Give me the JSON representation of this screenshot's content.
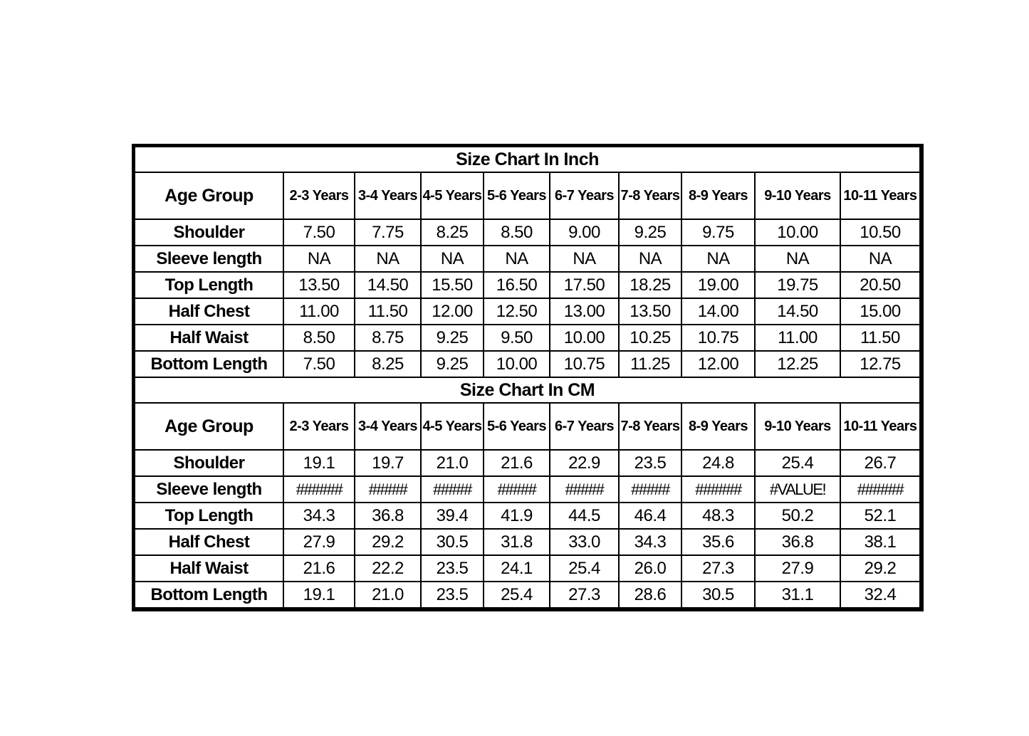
{
  "sections": [
    {
      "title": "Size Chart In Inch",
      "header_label": "Age Group",
      "ages": [
        "2-3 Years",
        "3-4 Years",
        "4-5 Years",
        "5-6 Years",
        "6-7 Years",
        "7-8 Years",
        "8-9 Years",
        "9-10 Years",
        "10-11 Years"
      ],
      "rows": [
        {
          "label": "Shoulder",
          "values": [
            "7.50",
            "7.75",
            "8.25",
            "8.50",
            "9.00",
            "9.25",
            "9.75",
            "10.00",
            "10.50"
          ]
        },
        {
          "label": "Sleeve length",
          "values": [
            "NA",
            "NA",
            "NA",
            "NA",
            "NA",
            "NA",
            "NA",
            "NA",
            "NA"
          ]
        },
        {
          "label": "Top Length",
          "values": [
            "13.50",
            "14.50",
            "15.50",
            "16.50",
            "17.50",
            "18.25",
            "19.00",
            "19.75",
            "20.50"
          ]
        },
        {
          "label": "Half Chest",
          "values": [
            "11.00",
            "11.50",
            "12.00",
            "12.50",
            "13.00",
            "13.50",
            "14.00",
            "14.50",
            "15.00"
          ]
        },
        {
          "label": "Half Waist",
          "values": [
            "8.50",
            "8.75",
            "9.25",
            "9.50",
            "10.00",
            "10.25",
            "10.75",
            "11.00",
            "11.50"
          ]
        },
        {
          "label": "Bottom Length",
          "values": [
            "7.50",
            "8.25",
            "9.25",
            "10.00",
            "10.75",
            "11.25",
            "12.00",
            "12.25",
            "12.75"
          ]
        }
      ]
    },
    {
      "title": "Size Chart In CM",
      "header_label": "Age Group",
      "ages": [
        "2-3 Years",
        "3-4 Years",
        "4-5 Years",
        "5-6 Years",
        "6-7 Years",
        "7-8 Years",
        "8-9 Years",
        "9-10 Years",
        "10-11 Years"
      ],
      "rows": [
        {
          "label": "Shoulder",
          "values": [
            "19.1",
            "19.7",
            "21.0",
            "21.6",
            "22.9",
            "23.5",
            "24.8",
            "25.4",
            "26.7"
          ]
        },
        {
          "label": "Sleeve length",
          "values": [
            "######",
            "#####",
            "#####",
            "#####",
            "#####",
            "#####",
            "######",
            "#VALUE!",
            "######"
          ]
        },
        {
          "label": "Top Length",
          "values": [
            "34.3",
            "36.8",
            "39.4",
            "41.9",
            "44.5",
            "46.4",
            "48.3",
            "50.2",
            "52.1"
          ]
        },
        {
          "label": "Half Chest",
          "values": [
            "27.9",
            "29.2",
            "30.5",
            "31.8",
            "33.0",
            "34.3",
            "35.6",
            "36.8",
            "38.1"
          ]
        },
        {
          "label": "Half Waist",
          "values": [
            "21.6",
            "22.2",
            "23.5",
            "24.1",
            "25.4",
            "26.0",
            "27.3",
            "27.9",
            "29.2"
          ]
        },
        {
          "label": "Bottom Length",
          "values": [
            "19.1",
            "21.0",
            "23.5",
            "25.4",
            "27.3",
            "28.6",
            "30.5",
            "31.1",
            "32.4"
          ]
        }
      ]
    }
  ]
}
